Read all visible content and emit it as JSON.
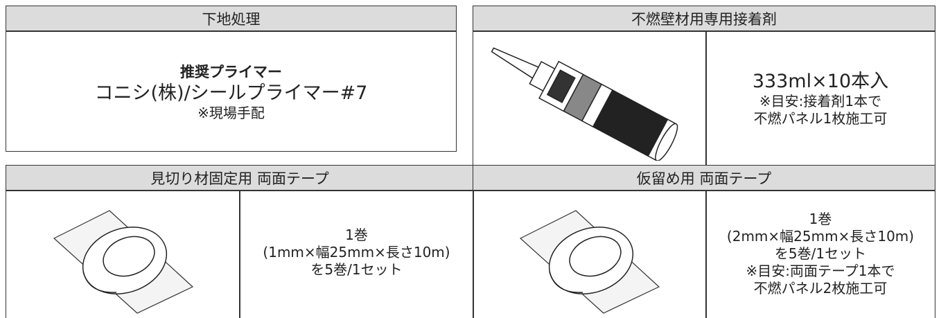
{
  "primer": {
    "header": "下地処理",
    "recommended_label": "推奨プライマー",
    "product": "コニシ(株)/シールプライマー#7",
    "note": "※現場手配"
  },
  "adhesive": {
    "header": "不燃壁材用専用接着剤",
    "lines": [
      "333ml×10本入",
      "※目安:接着剤1本で",
      "不燃パネル1枚施工可"
    ]
  },
  "tape_trim": {
    "header": "見切り材固定用 両面テープ",
    "lines": [
      "1巻",
      "(1mm×幅25mm×長さ10m)",
      "を5巻/1セット"
    ]
  },
  "tape_temp": {
    "header": "仮留め用 両面テープ",
    "lines": [
      "1巻",
      "(2mm×幅25mm×長さ10m)",
      "を5巻/1セット",
      "※目安:両面テープ1本で",
      "不燃パネル2枚施工可"
    ]
  }
}
